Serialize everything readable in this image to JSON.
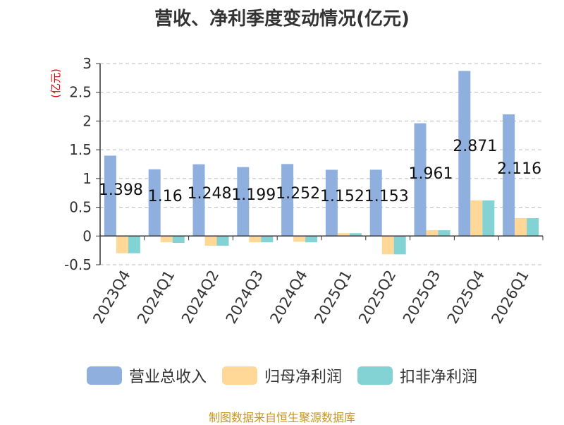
{
  "title": "营收、净利季度变动情况(亿元)",
  "source": "制图数据来自恒生聚源数据库",
  "colors": {
    "revenue": "#8FB0DF",
    "net_profit": "#FFD797",
    "deducted_profit": "#83D3D5",
    "axis": "#333333",
    "grid": "#bbbbbb",
    "unit": "#dd0000"
  },
  "chart_data": {
    "type": "bar",
    "title": "营收、净利季度变动情况(亿元)",
    "ylabel": "(亿元)",
    "xlabel": "",
    "ylim": [
      -0.5,
      3
    ],
    "yticks": [
      "-0.5",
      "0",
      "0.5",
      "1",
      "1.5",
      "2",
      "2.5",
      "3"
    ],
    "ytick_values": [
      -0.5,
      0,
      0.5,
      1,
      1.5,
      2,
      2.5,
      3
    ],
    "grid": true,
    "legend_position": "bottom",
    "categories": [
      "2023Q4",
      "2024Q1",
      "2024Q2",
      "2024Q3",
      "2024Q4",
      "2025Q1",
      "2025Q2",
      "2025Q3",
      "2025Q4",
      "2026Q1"
    ],
    "series": [
      {
        "name": "营业总收入",
        "values": [
          1.398,
          1.16,
          1.248,
          1.199,
          1.252,
          1.152,
          1.153,
          1.961,
          2.871,
          2.116
        ],
        "labels": [
          "1.398",
          "1.16",
          "1.248",
          "1.199",
          "1.252",
          "1.152",
          "1.153",
          "1.961",
          "2.871",
          "2.116"
        ]
      },
      {
        "name": "归母净利润",
        "values": [
          -0.3,
          -0.11,
          -0.17,
          -0.11,
          -0.1,
          0.05,
          -0.32,
          0.1,
          0.62,
          0.31
        ]
      },
      {
        "name": "扣非净利润",
        "values": [
          -0.3,
          -0.12,
          -0.17,
          -0.11,
          -0.11,
          0.05,
          -0.32,
          0.1,
          0.62,
          0.31
        ]
      }
    ]
  }
}
